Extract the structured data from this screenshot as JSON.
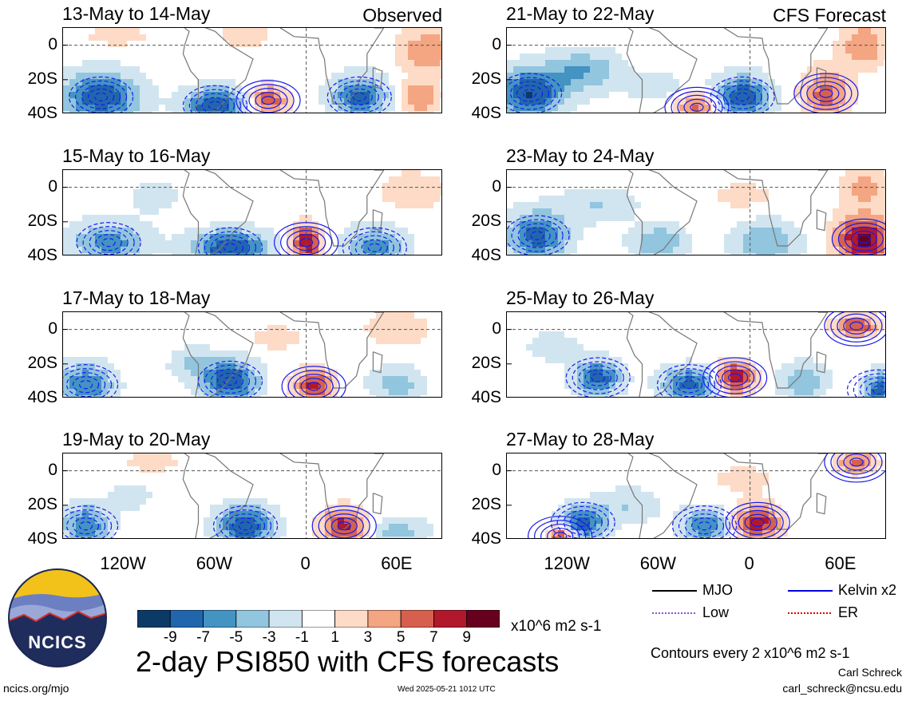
{
  "chart_data": {
    "type": "heatmap",
    "title": "2-day PSI850 with CFS forecasts",
    "corner_labels": {
      "left": "Observed",
      "right": "CFS Forecast"
    },
    "lat_ticks": [
      "0",
      "20S",
      "40S"
    ],
    "lon_ticks": [
      "120W",
      "60W",
      "0",
      "60E"
    ],
    "lon_range": [
      -160,
      90
    ],
    "lat_range": [
      -40,
      10
    ],
    "panels": [
      {
        "period": "13-May to 14-May",
        "group": "Observed"
      },
      {
        "period": "15-May to 16-May",
        "group": "Observed"
      },
      {
        "period": "17-May to 18-May",
        "group": "Observed"
      },
      {
        "period": "19-May to 20-May",
        "group": "Observed"
      },
      {
        "period": "21-May to 22-May",
        "group": "CFS Forecast"
      },
      {
        "period": "23-May to 24-May",
        "group": "CFS Forecast"
      },
      {
        "period": "25-May to 26-May",
        "group": "CFS Forecast"
      },
      {
        "period": "27-May to 28-May",
        "group": "CFS Forecast"
      }
    ],
    "colorbar": {
      "ticks": [
        "-9",
        "-7",
        "-5",
        "-3",
        "-1",
        "1",
        "3",
        "5",
        "7",
        "9"
      ],
      "colors": [
        "#0c3a66",
        "#2166ac",
        "#4393c3",
        "#92c5de",
        "#d1e5f0",
        "#ffffff",
        "#fddbc7",
        "#f4a582",
        "#d6604d",
        "#b2182b",
        "#67001f"
      ],
      "units": "x10^6 m2 s-1"
    },
    "legend": [
      {
        "label": "MJO",
        "color": "#000000",
        "style": "solid"
      },
      {
        "label": "Kelvin x2",
        "color": "#0000dd",
        "style": "solid"
      },
      {
        "label": "Low",
        "color": "#8a4fcf",
        "style": "dotted"
      },
      {
        "label": "ER",
        "color": "#dd0000",
        "style": "dotted"
      }
    ],
    "contour_note": "Contours every 2 x10^6 m2 s-1"
  },
  "logo": {
    "text": "NCICS"
  },
  "footer": {
    "left": "ncics.org/mjo",
    "center": "Wed 2025-05-21 1012 UTC",
    "author": "Carl Schreck",
    "email": "carl_schreck@ncsu.edu"
  }
}
